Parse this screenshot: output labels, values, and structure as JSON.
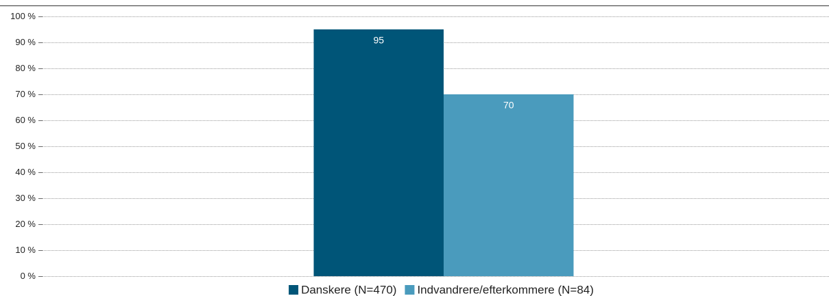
{
  "chart_data": {
    "type": "bar",
    "categories": [
      null
    ],
    "series": [
      {
        "name": "Danskere (N=470)",
        "color": "#005578",
        "values": [
          95
        ]
      },
      {
        "name": "Indvandrere/efterkommere (N=84)",
        "color": "#4a9bbd",
        "values": [
          70
        ]
      }
    ],
    "ylim": [
      0,
      100
    ],
    "yticks": [
      {
        "value": 0,
        "label": "0 %"
      },
      {
        "value": 10,
        "label": "10 %"
      },
      {
        "value": 20,
        "label": "20 %"
      },
      {
        "value": 30,
        "label": "30 %"
      },
      {
        "value": 40,
        "label": "40 %"
      },
      {
        "value": 50,
        "label": "50 %"
      },
      {
        "value": 60,
        "label": "60 %"
      },
      {
        "value": 70,
        "label": "70 %"
      },
      {
        "value": 80,
        "label": "80 %"
      },
      {
        "value": 90,
        "label": "90 %"
      },
      {
        "value": 100,
        "label": "100 %"
      }
    ],
    "grid": true,
    "legend": "bottom"
  }
}
